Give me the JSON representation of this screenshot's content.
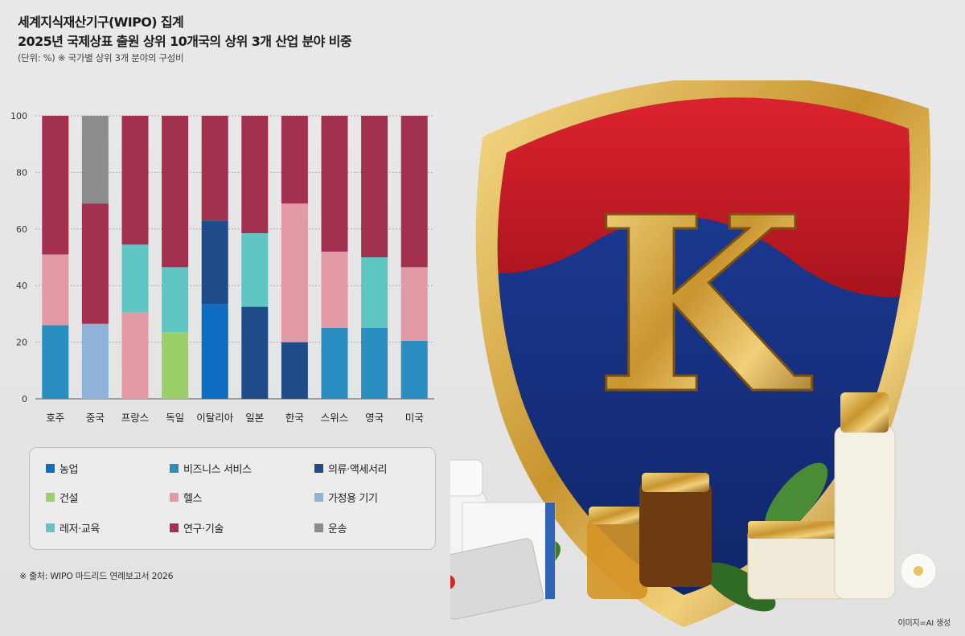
{
  "header": {
    "title_line1": "세계지식재산기구(WIPO) 집계",
    "title_line2": "2025년 국제상표 출원 상위 10개국의 상위 3개 산업 분야 비중",
    "unit_note": "(단위: %) ※ 국가별 상위 3개 분야의 구성비"
  },
  "chart_data": {
    "type": "bar",
    "stacked": true,
    "categories": [
      "호주",
      "중국",
      "프랑스",
      "독일",
      "이탈리아",
      "일본",
      "한국",
      "스위스",
      "영국",
      "미국"
    ],
    "y_ticks": [
      "0",
      "20",
      "40",
      "60",
      "80",
      "100"
    ],
    "ylim": [
      0,
      100
    ],
    "grid": "dotted horizontal",
    "segment_order": [
      "농업",
      "비즈니스 서비스",
      "의류·액세서리",
      "건설",
      "헬스",
      "가정용 기기",
      "레저·교육",
      "연구·기술",
      "운송"
    ],
    "series": [
      {
        "name": "농업",
        "color": "#0f6cc0",
        "values": [
          0,
          0,
          0,
          0,
          33.5,
          0,
          0,
          0,
          0,
          0
        ]
      },
      {
        "name": "비즈니스 서비스",
        "color": "#2a8fc0",
        "values": [
          26,
          0,
          0,
          0,
          0,
          0,
          0,
          25,
          25,
          20.5
        ]
      },
      {
        "name": "의류·액세서리",
        "color": "#1e4c8a",
        "values": [
          0,
          0,
          0,
          0,
          29.5,
          32.5,
          20,
          0,
          0,
          0
        ]
      },
      {
        "name": "건설",
        "color": "#9bcf6a",
        "values": [
          0,
          0,
          0,
          23.5,
          0,
          0,
          0,
          0,
          0,
          0
        ]
      },
      {
        "name": "헬스",
        "color": "#e29aa5",
        "values": [
          25,
          0,
          30.5,
          0,
          0,
          0,
          49,
          27,
          0,
          26
        ]
      },
      {
        "name": "가정용 기기",
        "color": "#8fb2d8",
        "values": [
          0,
          26.5,
          0,
          0,
          0,
          0,
          0,
          0,
          0,
          0
        ]
      },
      {
        "name": "레저·교육",
        "color": "#60c6c4",
        "values": [
          0,
          0,
          24,
          23,
          0,
          26,
          0,
          0,
          25,
          0
        ]
      },
      {
        "name": "연구·기술",
        "color": "#a3304f",
        "values": [
          49,
          42.5,
          45.5,
          53.5,
          37,
          41.5,
          31,
          48,
          50,
          53.5
        ]
      },
      {
        "name": "운송",
        "color": "#8c8c8c",
        "values": [
          0,
          31,
          0,
          0,
          0,
          0,
          0,
          0,
          0,
          0
        ]
      }
    ]
  },
  "legend": [
    {
      "label": "농업",
      "color": "#0f6cc0"
    },
    {
      "label": "비즈니스 서비스",
      "color": "#2a8fc0"
    },
    {
      "label": "의류·액세서리",
      "color": "#1e4c8a"
    },
    {
      "label": "건설",
      "color": "#9bcf6a"
    },
    {
      "label": "헬스",
      "color": "#e29aa5"
    },
    {
      "label": "가정용 기기",
      "color": "#8fb2d8"
    },
    {
      "label": "레저·교육",
      "color": "#60c6c4"
    },
    {
      "label": "연구·기술",
      "color": "#a3304f"
    },
    {
      "label": "운송",
      "color": "#8c8c8c"
    }
  ],
  "illustration": {
    "emblem_letter": "K"
  },
  "footer": {
    "source": "※ 출처: WIPO 마드리드 연례보고서 2026",
    "credit": "이미지=AI 생성"
  }
}
